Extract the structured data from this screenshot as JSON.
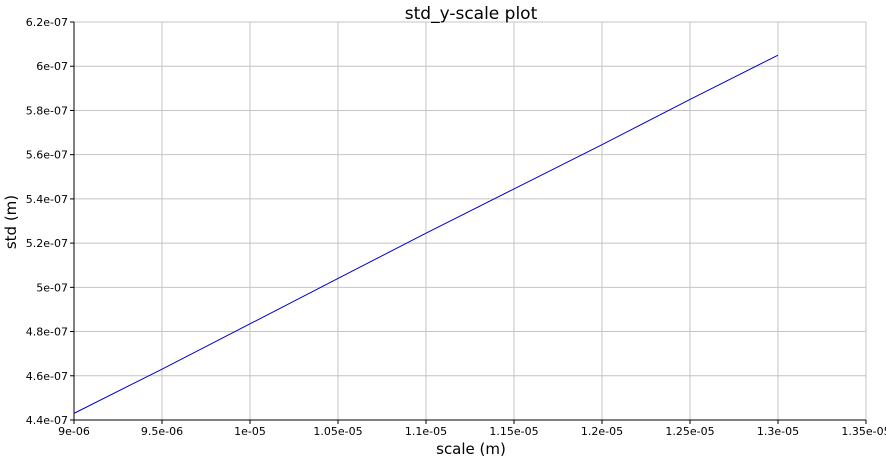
{
  "chart_data": {
    "type": "line",
    "title": "std_y-scale plot",
    "xlabel": "scale (m)",
    "ylabel": "std (m)",
    "xlim": [
      9e-06,
      1.35e-05
    ],
    "ylim": [
      4.4e-07,
      6.2e-07
    ],
    "x_ticks": [
      9e-06,
      9.5e-06,
      1e-05,
      1.05e-05,
      1.1e-05,
      1.15e-05,
      1.2e-05,
      1.25e-05,
      1.3e-05,
      1.35e-05
    ],
    "x_tick_labels": [
      "9e-06",
      "9.5e-06",
      "1e-05",
      "1.05e-05",
      "1.1e-05",
      "1.15e-05",
      "1.2e-05",
      "1.25e-05",
      "1.3e-05",
      "1.35e-05"
    ],
    "y_ticks": [
      4.4e-07,
      4.6e-07,
      4.8e-07,
      5e-07,
      5.2e-07,
      5.4e-07,
      5.6e-07,
      5.8e-07,
      6e-07,
      6.2e-07
    ],
    "y_tick_labels": [
      "4.4e-07",
      "4.6e-07",
      "4.8e-07",
      "5e-07",
      "5.2e-07",
      "5.4e-07",
      "5.6e-07",
      "5.8e-07",
      "6e-07",
      "6.2e-07"
    ],
    "grid": true,
    "series": [
      {
        "color": "#0000cc",
        "x": [
          9e-06,
          9.5e-06,
          1e-05,
          1.05e-05,
          1.1e-05,
          1.15e-05,
          1.2e-05,
          1.25e-05,
          1.3e-05
        ],
        "y": [
          4.43e-07,
          4.63e-07,
          4.835e-07,
          5.04e-07,
          5.245e-07,
          5.445e-07,
          5.645e-07,
          5.85e-07,
          6.05e-07
        ]
      }
    ]
  }
}
